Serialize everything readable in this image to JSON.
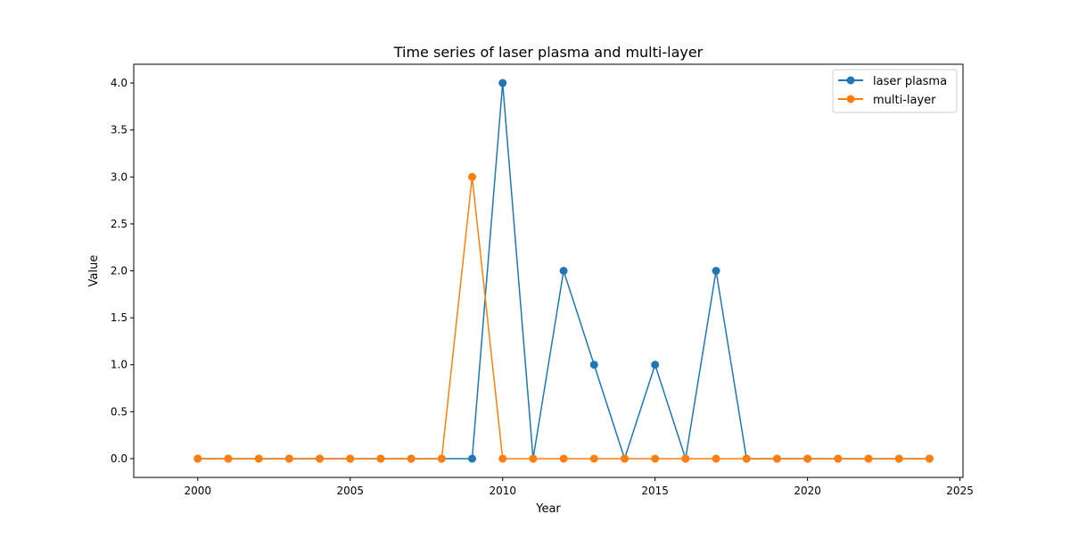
{
  "chart_data": {
    "type": "line",
    "title": "Time series of laser plasma and multi-layer",
    "xlabel": "Year",
    "ylabel": "Value",
    "xlim": [
      1997.9,
      2025.1
    ],
    "ylim": [
      -0.2,
      4.2
    ],
    "x_ticks": [
      2000,
      2005,
      2010,
      2015,
      2020,
      2025
    ],
    "y_ticks": [
      0.0,
      0.5,
      1.0,
      1.5,
      2.0,
      2.5,
      3.0,
      3.5,
      4.0
    ],
    "x_tick_labels": [
      "2000",
      "2005",
      "2010",
      "2015",
      "2020",
      "2025"
    ],
    "y_tick_labels": [
      "0.0",
      "0.5",
      "1.0",
      "1.5",
      "2.0",
      "2.5",
      "3.0",
      "3.5",
      "4.0"
    ],
    "grid": false,
    "legend": "top-right",
    "x": [
      2000,
      2001,
      2002,
      2003,
      2004,
      2005,
      2006,
      2007,
      2008,
      2009,
      2010,
      2011,
      2012,
      2013,
      2014,
      2015,
      2016,
      2017,
      2018,
      2019,
      2020,
      2021,
      2022,
      2023,
      2024
    ],
    "series": [
      {
        "name": "laser plasma",
        "color": "#1f77b4",
        "values": [
          0,
          0,
          0,
          0,
          0,
          0,
          0,
          0,
          0,
          0,
          4,
          0,
          2,
          1,
          0,
          1,
          0,
          2,
          0,
          0,
          0,
          0,
          0,
          0,
          0
        ]
      },
      {
        "name": "multi-layer",
        "color": "#ff7f0e",
        "values": [
          0,
          0,
          0,
          0,
          0,
          0,
          0,
          0,
          0,
          3,
          0,
          0,
          0,
          0,
          0,
          0,
          0,
          0,
          0,
          0,
          0,
          0,
          0,
          0,
          0
        ]
      }
    ]
  }
}
